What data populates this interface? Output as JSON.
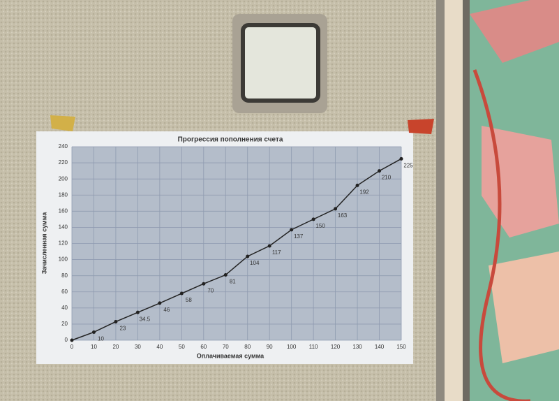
{
  "chart_data": {
    "type": "line",
    "title": "Прогрессия пополнения счета",
    "x_label": "Оплачиваемая сумма",
    "y_label": "Зачисленная сумма",
    "x": [
      0,
      10,
      20,
      30,
      40,
      50,
      60,
      70,
      80,
      90,
      100,
      110,
      120,
      130,
      140,
      150
    ],
    "series": [
      {
        "name": "Зачисленная сумма",
        "color": "#222222",
        "values": [
          0,
          10,
          23,
          34.5,
          46,
          58,
          70,
          81,
          104,
          117,
          137,
          150,
          163,
          192,
          210,
          225
        ]
      }
    ],
    "xlim": [
      0,
      150
    ],
    "xticks": [
      0,
      10,
      20,
      30,
      40,
      50,
      60,
      70,
      80,
      90,
      100,
      110,
      120,
      130,
      140,
      150
    ],
    "ylim": [
      0,
      240
    ],
    "yticks": [
      0,
      20,
      40,
      60,
      80,
      100,
      120,
      140,
      160,
      180,
      200,
      220,
      240
    ],
    "grid": true
  }
}
